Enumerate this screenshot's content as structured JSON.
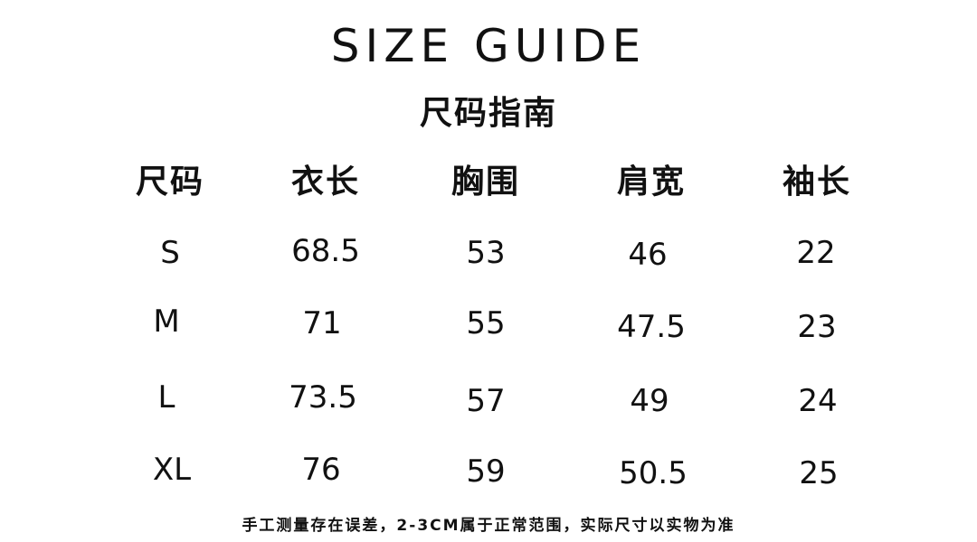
{
  "title": "SIZE GUIDE",
  "subtitle": "尺码指南",
  "table": {
    "headers": [
      "尺码",
      "衣长",
      "胸围",
      "肩宽",
      "袖长"
    ],
    "rows": [
      [
        "S",
        "68.5",
        "53",
        "46",
        "22"
      ],
      [
        "M",
        "71",
        "55",
        "47.5",
        "23"
      ],
      [
        "L",
        "73.5",
        "57",
        "49",
        "24"
      ],
      [
        "XL",
        "76",
        "59",
        "50.5",
        "25"
      ]
    ]
  },
  "footer": "手工测量存在误差，2-3CM属于正常范围，实际尺寸以实物为准"
}
